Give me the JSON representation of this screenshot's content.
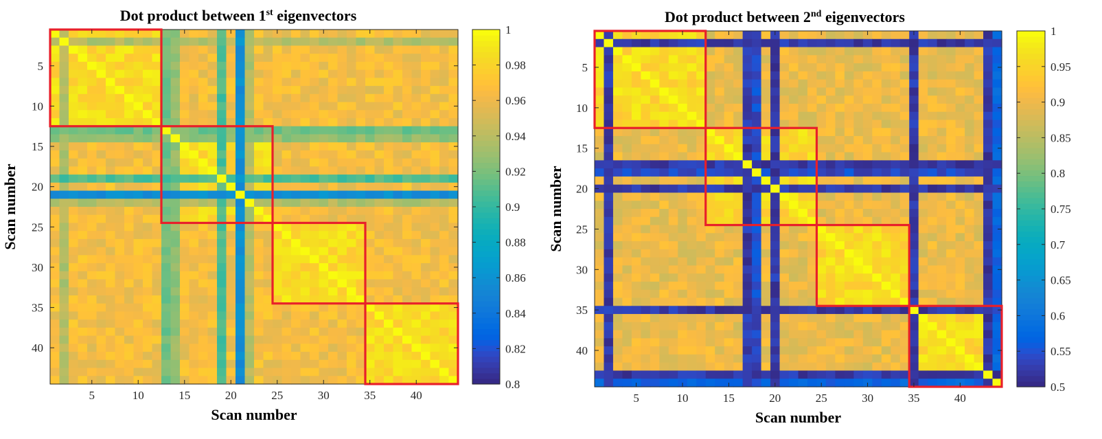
{
  "colors": {
    "block_outline": "#e8202a",
    "axis": "#262626"
  },
  "colormap": "parula",
  "chart_data": [
    {
      "type": "heatmap",
      "title_prefix": "Dot product between 1",
      "title_sup": "st",
      "title_suffix": " eigenvectors",
      "xlabel": "Scan number",
      "ylabel": "Scan number",
      "n": 44,
      "x_ticks": [
        5,
        10,
        15,
        20,
        25,
        30,
        35,
        40
      ],
      "y_ticks": [
        5,
        10,
        15,
        20,
        25,
        30,
        35,
        40
      ],
      "clim": [
        0.8,
        1
      ],
      "colorbar_ticks": [
        0.8,
        0.82,
        0.84,
        0.86,
        0.88,
        0.9,
        0.92,
        0.94,
        0.96,
        0.98,
        1
      ],
      "colorbar_tick_labels": [
        "0.8",
        "0.82",
        "0.84",
        "0.86",
        "0.88",
        "0.9",
        "0.92",
        "0.94",
        "0.96",
        "0.98",
        "1"
      ],
      "blocks": [
        [
          1,
          12
        ],
        [
          13,
          24
        ],
        [
          25,
          34
        ],
        [
          35,
          44
        ]
      ],
      "within_block_value": 0.985,
      "between_block_value": 0.965,
      "low_rows": [
        {
          "scan": 2,
          "value": 0.93
        },
        {
          "scan": 13,
          "value": 0.91
        },
        {
          "scan": 14,
          "value": 0.92
        },
        {
          "scan": 19,
          "value": 0.9
        },
        {
          "scan": 21,
          "value": 0.85
        },
        {
          "scan": 22,
          "value": 0.93
        }
      ],
      "grid": false
    },
    {
      "type": "heatmap",
      "title_prefix": "Dot product between 2",
      "title_sup": "nd",
      "title_suffix": " eigenvectors",
      "xlabel": "Scan number",
      "ylabel": "Scan number",
      "n": 44,
      "x_ticks": [
        5,
        10,
        15,
        20,
        25,
        30,
        35,
        40
      ],
      "y_ticks": [
        5,
        10,
        15,
        20,
        25,
        30,
        35,
        40
      ],
      "clim": [
        0.5,
        1
      ],
      "colorbar_ticks": [
        0.5,
        0.55,
        0.6,
        0.65,
        0.7,
        0.75,
        0.8,
        0.85,
        0.9,
        0.95,
        1
      ],
      "colorbar_tick_labels": [
        "0.5",
        "0.55",
        "0.6",
        "0.65",
        "0.7",
        "0.75",
        "0.8",
        "0.85",
        "0.9",
        "0.95",
        "1"
      ],
      "blocks": [
        [
          1,
          12
        ],
        [
          13,
          24
        ],
        [
          25,
          34
        ],
        [
          35,
          44
        ]
      ],
      "within_block_value": 0.96,
      "between_block_value": 0.9,
      "low_rows": [
        {
          "scan": 2,
          "value": 0.5
        },
        {
          "scan": 17,
          "value": 0.5
        },
        {
          "scan": 18,
          "value": 0.52
        },
        {
          "scan": 20,
          "value": 0.5
        },
        {
          "scan": 35,
          "value": 0.5
        },
        {
          "scan": 43,
          "value": 0.5
        },
        {
          "scan": 44,
          "value": 0.55
        }
      ],
      "grid": false
    }
  ]
}
